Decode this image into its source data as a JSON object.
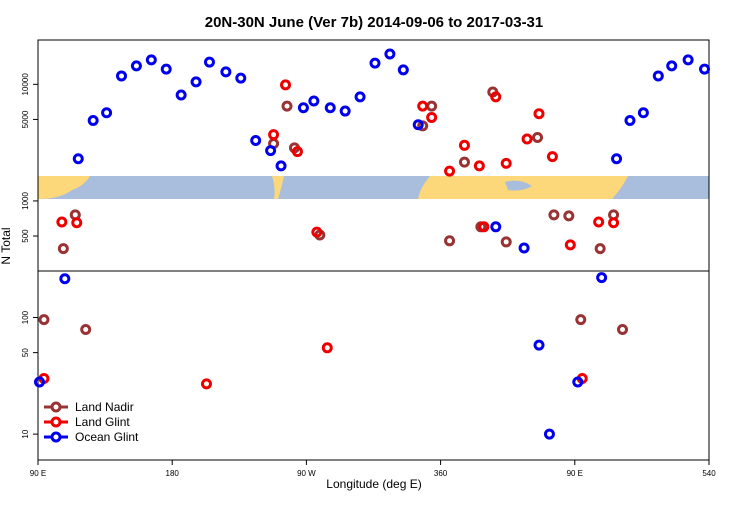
{
  "chart_data": {
    "type": "scatter",
    "title": "20N-30N June (Ver 7b)   2014-09-06 to 2017-03-31",
    "x_label": "Longitude (deg E)",
    "y_label": "N Total",
    "xlim": [
      90,
      540
    ],
    "ylim": [
      6,
      24000
    ],
    "log_y": true,
    "xticks": [
      {
        "value": 90,
        "label": "90 E"
      },
      180,
      {
        "value": 270,
        "label": "90 W"
      },
      360,
      {
        "value": 450,
        "label": "90 E"
      },
      540
    ],
    "yticks": [
      10000,
      5000,
      1000,
      500,
      100,
      50,
      10
    ],
    "legend": "bottom-left",
    "series": [
      {
        "name": "Land Nadir",
        "color": "#993333",
        "x": [
          94,
          107,
          115,
          122,
          248,
          257,
          262,
          279,
          348,
          354,
          366,
          376,
          387,
          395,
          404,
          425,
          436,
          446,
          454,
          467,
          476,
          482
        ],
        "values": [
          96,
          390,
          760,
          79,
          3100,
          6500,
          2850,
          510,
          4400,
          6500,
          455,
          2150,
          600,
          8600,
          445,
          3500,
          760,
          745,
          96,
          390,
          760,
          79
        ]
      },
      {
        "name": "Land Glint",
        "color": "#ee0000",
        "x": [
          94,
          106,
          116,
          203,
          248,
          256,
          264,
          277,
          284,
          348,
          354,
          366,
          376,
          386,
          389,
          397,
          404,
          418,
          426,
          435,
          447,
          455,
          466,
          476
        ],
        "values": [
          30,
          660,
          650,
          27,
          3700,
          9900,
          2650,
          540,
          55,
          6500,
          5200,
          1800,
          3000,
          2000,
          600,
          7800,
          2100,
          3400,
          5600,
          2400,
          420,
          30,
          660,
          650
        ]
      },
      {
        "name": "Ocean Glint",
        "color": "#0000ee",
        "x": [
          91,
          108,
          117,
          127,
          136,
          146,
          156,
          166,
          176,
          186,
          196,
          205,
          216,
          226,
          236,
          246,
          253,
          268,
          275,
          286,
          296,
          306,
          316,
          326,
          335,
          345,
          397,
          416,
          426,
          433,
          452,
          468,
          478,
          487,
          496,
          506,
          515,
          526,
          537
        ],
        "values": [
          28,
          215,
          2300,
          4900,
          5700,
          11800,
          14400,
          16200,
          13500,
          8100,
          10500,
          15500,
          12800,
          11300,
          3300,
          2700,
          2000,
          6300,
          7200,
          6300,
          5900,
          7800,
          15200,
          18200,
          13300,
          4500,
          600,
          395,
          58,
          10,
          28,
          220,
          2300,
          4900,
          5700,
          11800,
          14400,
          16200,
          13500
        ]
      }
    ]
  }
}
